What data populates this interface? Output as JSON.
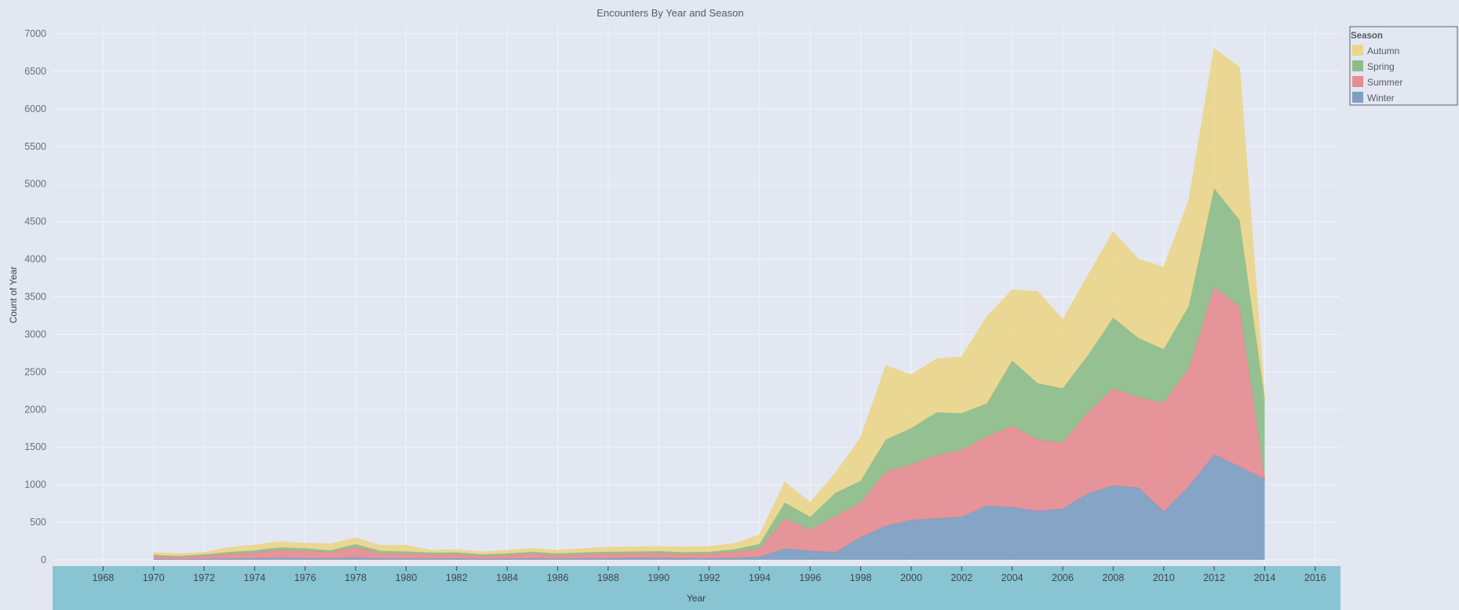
{
  "chart_data": {
    "type": "area",
    "stacked": true,
    "title": "Encounters By Year and Season",
    "xlabel": "Year",
    "ylabel": "Count of Year",
    "xlim": [
      1966,
      2017
    ],
    "ylim": [
      0,
      7200
    ],
    "x_ticks": [
      1968,
      1970,
      1972,
      1974,
      1976,
      1978,
      1980,
      1982,
      1984,
      1986,
      1988,
      1990,
      1992,
      1994,
      1996,
      1998,
      2000,
      2002,
      2004,
      2006,
      2008,
      2010,
      2012,
      2014,
      2016
    ],
    "y_ticks": [
      0,
      500,
      1000,
      1500,
      2000,
      2500,
      3000,
      3500,
      4000,
      4500,
      5000,
      5500,
      6000,
      6500,
      7000
    ],
    "grid": true,
    "legend": {
      "title": "Season",
      "position": "top-right"
    },
    "x": [
      1970,
      1971,
      1972,
      1973,
      1974,
      1975,
      1976,
      1977,
      1978,
      1979,
      1980,
      1981,
      1982,
      1983,
      1984,
      1985,
      1986,
      1987,
      1988,
      1989,
      1990,
      1991,
      1992,
      1993,
      1994,
      1995,
      1996,
      1997,
      1998,
      1999,
      2000,
      2001,
      2002,
      2003,
      2004,
      2005,
      2006,
      2007,
      2008,
      2009,
      2010,
      2011,
      2012,
      2013,
      2014
    ],
    "series": [
      {
        "name": "Winter",
        "color": "#7e9ec1",
        "values": [
          10,
          8,
          12,
          18,
          20,
          25,
          22,
          20,
          28,
          18,
          18,
          15,
          18,
          12,
          15,
          20,
          15,
          18,
          20,
          25,
          25,
          20,
          20,
          25,
          40,
          150,
          120,
          100,
          300,
          450,
          530,
          550,
          570,
          720,
          700,
          650,
          680,
          880,
          990,
          960,
          640,
          980,
          1400,
          1240,
          1070
        ]
      },
      {
        "name": "Summer",
        "color": "#e58d92",
        "values": [
          40,
          30,
          45,
          60,
          75,
          105,
          100,
          80,
          140,
          70,
          68,
          55,
          55,
          40,
          50,
          60,
          45,
          55,
          60,
          60,
          65,
          55,
          60,
          80,
          110,
          400,
          280,
          480,
          460,
          720,
          740,
          840,
          890,
          920,
          1080,
          950,
          880,
          1080,
          1290,
          1200,
          1450,
          1570,
          2230,
          2130,
          0
        ]
      },
      {
        "name": "Spring",
        "color": "#8ebd8a",
        "values": [
          15,
          12,
          15,
          25,
          30,
          35,
          30,
          25,
          40,
          30,
          25,
          25,
          25,
          20,
          20,
          25,
          25,
          25,
          25,
          25,
          25,
          25,
          25,
          35,
          60,
          210,
          170,
          310,
          290,
          430,
          480,
          570,
          490,
          440,
          870,
          750,
          720,
          760,
          940,
          790,
          710,
          830,
          1310,
          1150,
          1060
        ]
      },
      {
        "name": "Autumn",
        "color": "#ebd68c",
        "values": [
          30,
          30,
          25,
          60,
          70,
          75,
          65,
          85,
          80,
          70,
          80,
          30,
          35,
          30,
          40,
          45,
          40,
          50,
          60,
          60,
          60,
          70,
          70,
          75,
          120,
          270,
          190,
          260,
          570,
          980,
          710,
          710,
          750,
          1150,
          940,
          1220,
          910,
          1060,
          1140,
          1050,
          1090,
          1400,
          1860,
          2030,
          0
        ]
      }
    ]
  }
}
